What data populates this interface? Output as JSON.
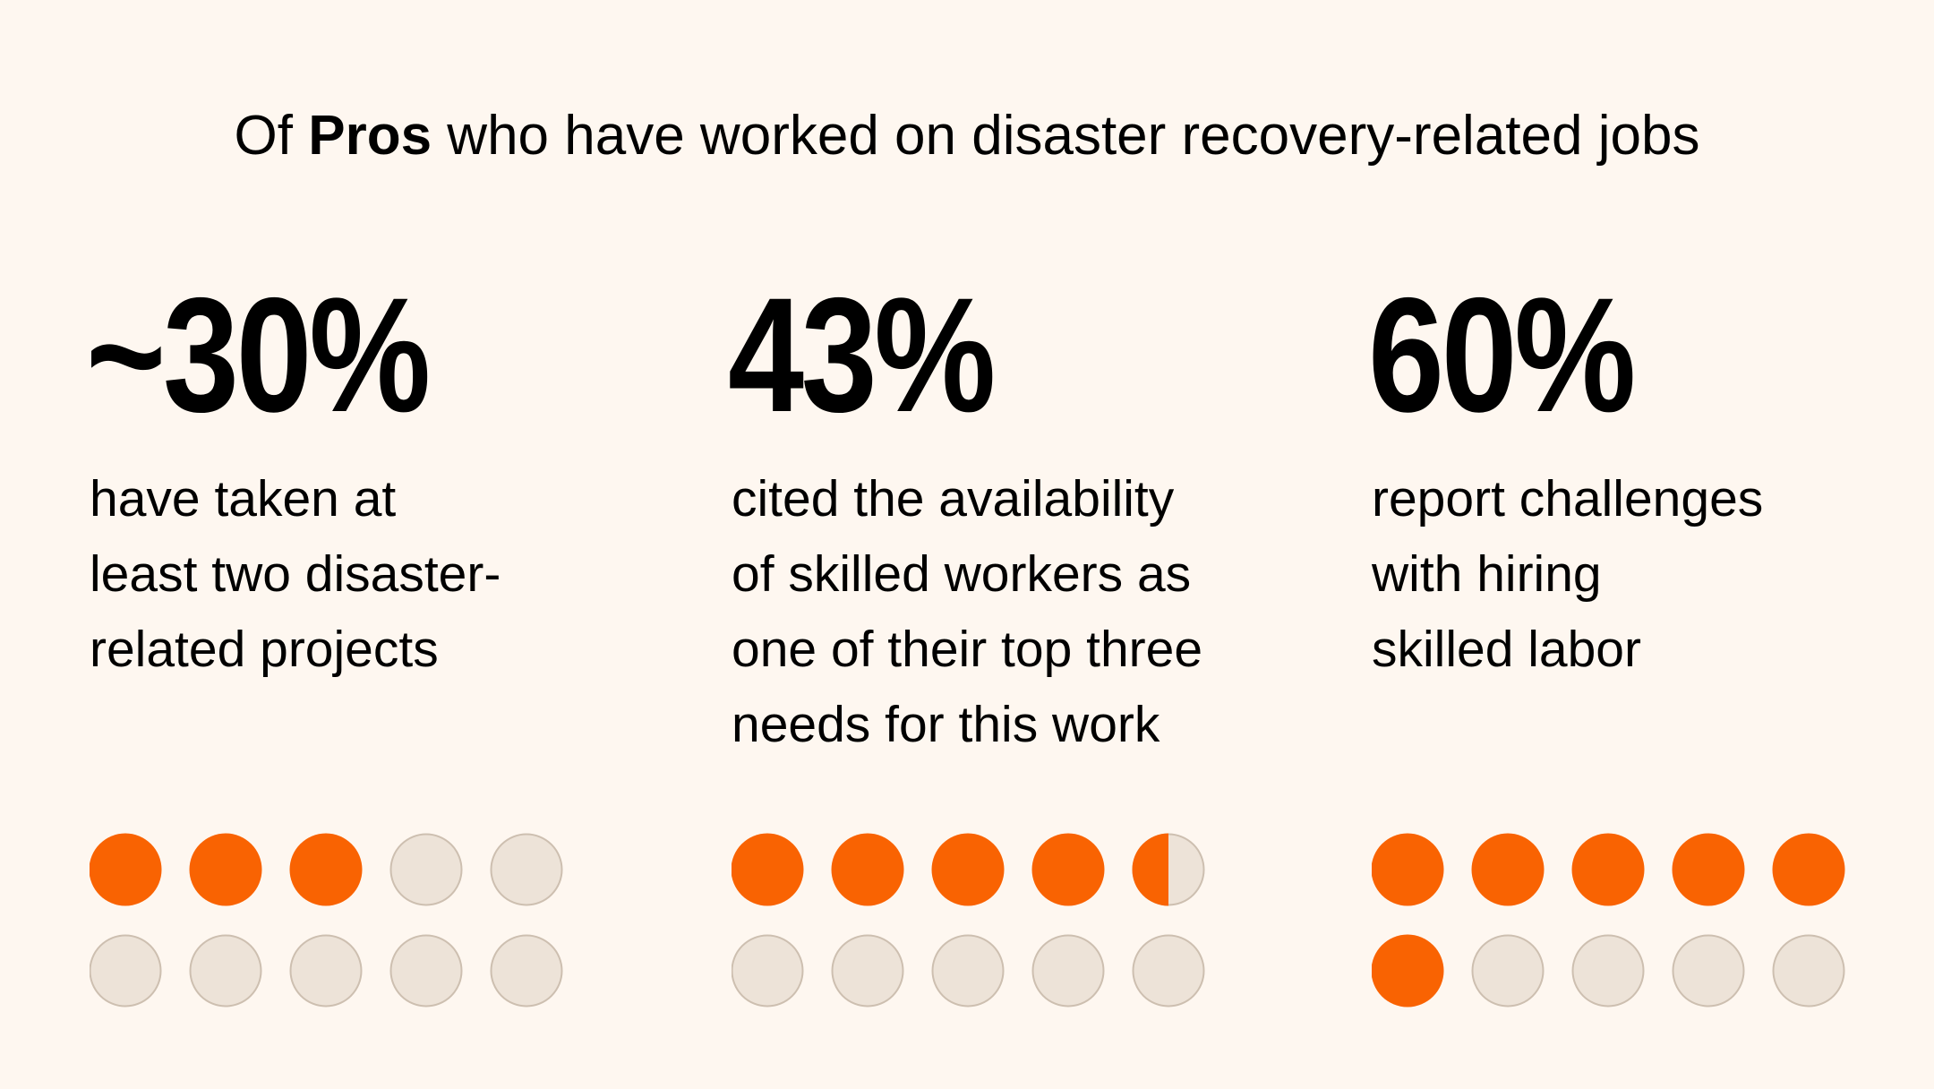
{
  "title": {
    "prefix": "Of ",
    "bold": "Pros",
    "suffix": " who have worked on disaster recovery-related jobs"
  },
  "colors": {
    "background": "#fef7f0",
    "filled": "#f96302",
    "empty": "#ede3d8",
    "empty_stroke": "#cdbfb0"
  },
  "stats": [
    {
      "value": "~30%",
      "lines": [
        "have taken at",
        "least two disaster-",
        "related projects"
      ],
      "dots_total": 10,
      "dots_filled": 3
    },
    {
      "value": "43%",
      "lines": [
        "cited the availability",
        "of skilled workers as",
        "one of their top three",
        "needs for this work"
      ],
      "dots_total": 10,
      "dots_filled": 4.5
    },
    {
      "value": "60%",
      "lines": [
        "report challenges",
        "with hiring",
        "skilled labor"
      ],
      "dots_total": 10,
      "dots_filled": 6
    }
  ]
}
